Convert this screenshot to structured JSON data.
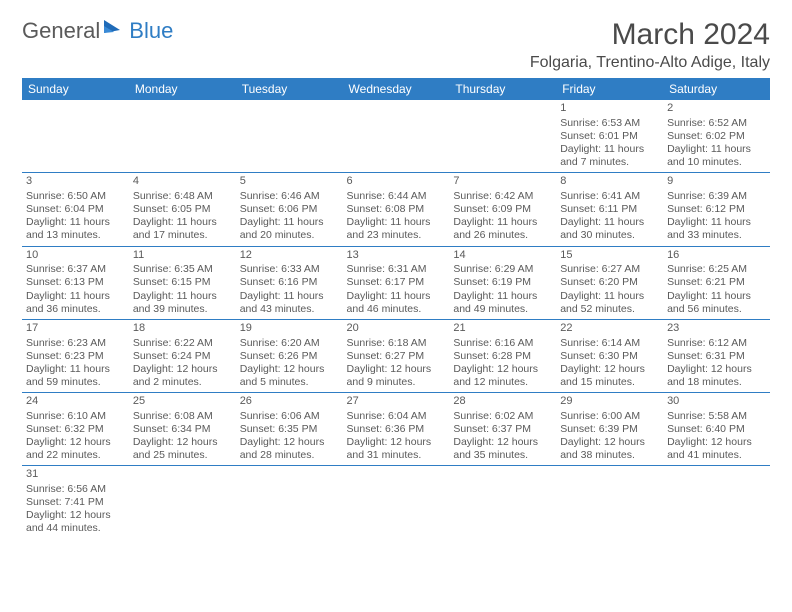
{
  "logo": {
    "part1": "General",
    "part2": "Blue"
  },
  "header": {
    "month_title": "March 2024",
    "location": "Folgaria, Trentino-Alto Adige, Italy"
  },
  "colors": {
    "brand_blue": "#2f7dc4",
    "text": "#4a4a4a",
    "background": "#ffffff"
  },
  "calendar": {
    "weekdays": [
      "Sunday",
      "Monday",
      "Tuesday",
      "Wednesday",
      "Thursday",
      "Friday",
      "Saturday"
    ],
    "weeks": [
      [
        null,
        null,
        null,
        null,
        null,
        {
          "day": "1",
          "sunrise": "Sunrise: 6:53 AM",
          "sunset": "Sunset: 6:01 PM",
          "day1": "Daylight: 11 hours",
          "day2": "and 7 minutes."
        },
        {
          "day": "2",
          "sunrise": "Sunrise: 6:52 AM",
          "sunset": "Sunset: 6:02 PM",
          "day1": "Daylight: 11 hours",
          "day2": "and 10 minutes."
        }
      ],
      [
        {
          "day": "3",
          "sunrise": "Sunrise: 6:50 AM",
          "sunset": "Sunset: 6:04 PM",
          "day1": "Daylight: 11 hours",
          "day2": "and 13 minutes."
        },
        {
          "day": "4",
          "sunrise": "Sunrise: 6:48 AM",
          "sunset": "Sunset: 6:05 PM",
          "day1": "Daylight: 11 hours",
          "day2": "and 17 minutes."
        },
        {
          "day": "5",
          "sunrise": "Sunrise: 6:46 AM",
          "sunset": "Sunset: 6:06 PM",
          "day1": "Daylight: 11 hours",
          "day2": "and 20 minutes."
        },
        {
          "day": "6",
          "sunrise": "Sunrise: 6:44 AM",
          "sunset": "Sunset: 6:08 PM",
          "day1": "Daylight: 11 hours",
          "day2": "and 23 minutes."
        },
        {
          "day": "7",
          "sunrise": "Sunrise: 6:42 AM",
          "sunset": "Sunset: 6:09 PM",
          "day1": "Daylight: 11 hours",
          "day2": "and 26 minutes."
        },
        {
          "day": "8",
          "sunrise": "Sunrise: 6:41 AM",
          "sunset": "Sunset: 6:11 PM",
          "day1": "Daylight: 11 hours",
          "day2": "and 30 minutes."
        },
        {
          "day": "9",
          "sunrise": "Sunrise: 6:39 AM",
          "sunset": "Sunset: 6:12 PM",
          "day1": "Daylight: 11 hours",
          "day2": "and 33 minutes."
        }
      ],
      [
        {
          "day": "10",
          "sunrise": "Sunrise: 6:37 AM",
          "sunset": "Sunset: 6:13 PM",
          "day1": "Daylight: 11 hours",
          "day2": "and 36 minutes."
        },
        {
          "day": "11",
          "sunrise": "Sunrise: 6:35 AM",
          "sunset": "Sunset: 6:15 PM",
          "day1": "Daylight: 11 hours",
          "day2": "and 39 minutes."
        },
        {
          "day": "12",
          "sunrise": "Sunrise: 6:33 AM",
          "sunset": "Sunset: 6:16 PM",
          "day1": "Daylight: 11 hours",
          "day2": "and 43 minutes."
        },
        {
          "day": "13",
          "sunrise": "Sunrise: 6:31 AM",
          "sunset": "Sunset: 6:17 PM",
          "day1": "Daylight: 11 hours",
          "day2": "and 46 minutes."
        },
        {
          "day": "14",
          "sunrise": "Sunrise: 6:29 AM",
          "sunset": "Sunset: 6:19 PM",
          "day1": "Daylight: 11 hours",
          "day2": "and 49 minutes."
        },
        {
          "day": "15",
          "sunrise": "Sunrise: 6:27 AM",
          "sunset": "Sunset: 6:20 PM",
          "day1": "Daylight: 11 hours",
          "day2": "and 52 minutes."
        },
        {
          "day": "16",
          "sunrise": "Sunrise: 6:25 AM",
          "sunset": "Sunset: 6:21 PM",
          "day1": "Daylight: 11 hours",
          "day2": "and 56 minutes."
        }
      ],
      [
        {
          "day": "17",
          "sunrise": "Sunrise: 6:23 AM",
          "sunset": "Sunset: 6:23 PM",
          "day1": "Daylight: 11 hours",
          "day2": "and 59 minutes."
        },
        {
          "day": "18",
          "sunrise": "Sunrise: 6:22 AM",
          "sunset": "Sunset: 6:24 PM",
          "day1": "Daylight: 12 hours",
          "day2": "and 2 minutes."
        },
        {
          "day": "19",
          "sunrise": "Sunrise: 6:20 AM",
          "sunset": "Sunset: 6:26 PM",
          "day1": "Daylight: 12 hours",
          "day2": "and 5 minutes."
        },
        {
          "day": "20",
          "sunrise": "Sunrise: 6:18 AM",
          "sunset": "Sunset: 6:27 PM",
          "day1": "Daylight: 12 hours",
          "day2": "and 9 minutes."
        },
        {
          "day": "21",
          "sunrise": "Sunrise: 6:16 AM",
          "sunset": "Sunset: 6:28 PM",
          "day1": "Daylight: 12 hours",
          "day2": "and 12 minutes."
        },
        {
          "day": "22",
          "sunrise": "Sunrise: 6:14 AM",
          "sunset": "Sunset: 6:30 PM",
          "day1": "Daylight: 12 hours",
          "day2": "and 15 minutes."
        },
        {
          "day": "23",
          "sunrise": "Sunrise: 6:12 AM",
          "sunset": "Sunset: 6:31 PM",
          "day1": "Daylight: 12 hours",
          "day2": "and 18 minutes."
        }
      ],
      [
        {
          "day": "24",
          "sunrise": "Sunrise: 6:10 AM",
          "sunset": "Sunset: 6:32 PM",
          "day1": "Daylight: 12 hours",
          "day2": "and 22 minutes."
        },
        {
          "day": "25",
          "sunrise": "Sunrise: 6:08 AM",
          "sunset": "Sunset: 6:34 PM",
          "day1": "Daylight: 12 hours",
          "day2": "and 25 minutes."
        },
        {
          "day": "26",
          "sunrise": "Sunrise: 6:06 AM",
          "sunset": "Sunset: 6:35 PM",
          "day1": "Daylight: 12 hours",
          "day2": "and 28 minutes."
        },
        {
          "day": "27",
          "sunrise": "Sunrise: 6:04 AM",
          "sunset": "Sunset: 6:36 PM",
          "day1": "Daylight: 12 hours",
          "day2": "and 31 minutes."
        },
        {
          "day": "28",
          "sunrise": "Sunrise: 6:02 AM",
          "sunset": "Sunset: 6:37 PM",
          "day1": "Daylight: 12 hours",
          "day2": "and 35 minutes."
        },
        {
          "day": "29",
          "sunrise": "Sunrise: 6:00 AM",
          "sunset": "Sunset: 6:39 PM",
          "day1": "Daylight: 12 hours",
          "day2": "and 38 minutes."
        },
        {
          "day": "30",
          "sunrise": "Sunrise: 5:58 AM",
          "sunset": "Sunset: 6:40 PM",
          "day1": "Daylight: 12 hours",
          "day2": "and 41 minutes."
        }
      ],
      [
        {
          "day": "31",
          "sunrise": "Sunrise: 6:56 AM",
          "sunset": "Sunset: 7:41 PM",
          "day1": "Daylight: 12 hours",
          "day2": "and 44 minutes."
        },
        null,
        null,
        null,
        null,
        null,
        null
      ]
    ]
  }
}
